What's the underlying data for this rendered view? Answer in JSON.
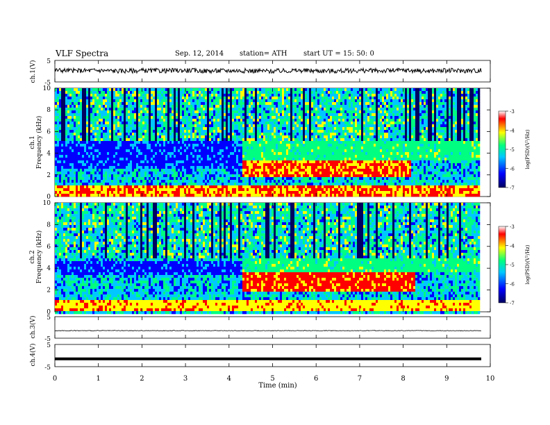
{
  "header": {
    "title": "VLF  Spectra",
    "date": "Sep. 12, 2014",
    "station": "station= ATH",
    "start": "start  UT  =   15: 50: 0"
  },
  "colors": {
    "colormap": [
      "#000060",
      "#0000ff",
      "#00c8ff",
      "#00ff80",
      "#ffff00",
      "#ff0000",
      "#ffffff"
    ]
  },
  "chart_data": [
    {
      "type": "line",
      "panel": "ch1-waveform",
      "ylabel": "ch.1(V)",
      "ylim": [
        -5,
        5
      ],
      "yticks": [
        "5",
        "-5"
      ],
      "x": [
        0,
        0.5,
        1,
        1.5,
        2,
        2.5,
        3,
        3.5,
        4,
        4.5,
        5,
        5.5,
        6,
        6.5,
        7,
        7.5,
        8,
        8.5,
        9,
        9.5,
        9.8
      ],
      "y": [
        0.5,
        0.2,
        0.4,
        0.1,
        0.3,
        0.2,
        0.4,
        0.1,
        0.3,
        0.2,
        0.0,
        0.3,
        0.2,
        0.1,
        0.3,
        0.2,
        0.4,
        0.1,
        0.3,
        0.2,
        0.3
      ]
    },
    {
      "type": "heatmap",
      "panel": "ch1-spectrogram",
      "ylabel": "Frequency  (kHz)",
      "channel_label": "ch.1",
      "ylim": [
        0,
        10
      ],
      "yticks": [
        "0",
        "2",
        "4",
        "6",
        "8",
        "10"
      ],
      "xlim": [
        0,
        9.8
      ],
      "colorbar": {
        "label": "log(PSD)(V²/Hz)",
        "range": [
          -7,
          -3
        ],
        "ticks": [
          "-3",
          "-4",
          "-5",
          "-6",
          "-7"
        ]
      },
      "features": [
        {
          "t_start": 0.0,
          "t_end": 4.3,
          "f_low": 2.5,
          "f_high": 5.0,
          "level": -6.2
        },
        {
          "t_start": 4.3,
          "t_end": 8.2,
          "f_low": 1.8,
          "f_high": 3.4,
          "level": -3.9
        },
        {
          "t_start": 4.3,
          "t_end": 9.8,
          "f_low": 3.4,
          "f_high": 5.0,
          "level": -5.0
        },
        {
          "t_start": 0.0,
          "t_end": 9.8,
          "f_low": 0.0,
          "f_high": 1.0,
          "level": -4.0
        }
      ]
    },
    {
      "type": "heatmap",
      "panel": "ch2-spectrogram",
      "ylabel": "Frequency  (kHz)",
      "channel_label": "ch.2",
      "ylim": [
        0,
        10
      ],
      "yticks": [
        "0",
        "2",
        "4",
        "6",
        "8",
        "10"
      ],
      "xlim": [
        0,
        9.8
      ],
      "colorbar": {
        "label": "log(PSD)(V²/Hz)",
        "range": [
          -7,
          -3
        ],
        "ticks": [
          "-3",
          "-4",
          "-5",
          "-6",
          "-7"
        ]
      },
      "features": [
        {
          "t_start": 0.0,
          "t_end": 4.3,
          "f_low": 3.5,
          "f_high": 4.6,
          "level": -6.2
        },
        {
          "t_start": 4.3,
          "t_end": 8.3,
          "f_low": 1.8,
          "f_high": 3.6,
          "level": -3.8
        },
        {
          "t_start": 4.3,
          "t_end": 9.8,
          "f_low": 3.6,
          "f_high": 5.0,
          "level": -5.0
        },
        {
          "t_start": 0.0,
          "t_end": 9.8,
          "f_low": 0.0,
          "f_high": 1.0,
          "level": -4.2
        }
      ]
    },
    {
      "type": "line",
      "panel": "ch3-waveform",
      "ylabel": "ch.3(V)",
      "ylim": [
        -5,
        5
      ],
      "yticks": [
        "5",
        "-5"
      ],
      "x": [
        0,
        9.8
      ],
      "y": [
        -1.5,
        -1.5
      ]
    },
    {
      "type": "line",
      "panel": "ch4-waveform",
      "ylabel": "ch.4(V)",
      "ylim": [
        -5,
        5
      ],
      "yticks": [
        "5",
        "-5"
      ],
      "x": [
        0,
        9.8
      ],
      "y": [
        -1.5,
        -1.5
      ]
    }
  ],
  "x_axis": {
    "label": "Time  (min)",
    "range": [
      0,
      10
    ],
    "ticks": [
      "0",
      "1",
      "2",
      "3",
      "4",
      "5",
      "6",
      "7",
      "8",
      "9",
      "10"
    ]
  }
}
